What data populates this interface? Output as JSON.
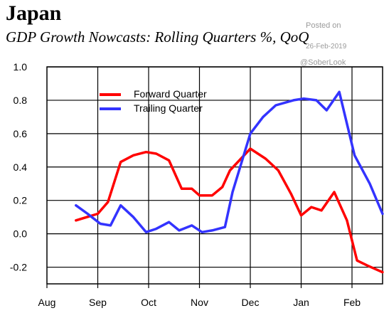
{
  "header": {
    "title": "Japan",
    "subtitle": "GDP Growth Nowcasts: Rolling Quarters %, QoQ"
  },
  "watermark": {
    "line1": "Posted on",
    "line2": "26-Feb-2019",
    "line3": "@SoberLook"
  },
  "chart_data": {
    "type": "line",
    "ylim": [
      -0.3,
      1.0
    ],
    "yticks": [
      1.0,
      0.8,
      0.6,
      0.4,
      0.2,
      0.0,
      -0.2
    ],
    "ytick_labels": [
      "1.0",
      "0.8",
      "0.6",
      "0.4",
      "0.2",
      "0.0",
      "-0.2"
    ],
    "xlim": [
      0,
      6.65
    ],
    "xticks": [
      0,
      1,
      2,
      3,
      4,
      5,
      6
    ],
    "xtick_labels": [
      "Aug",
      "Sep",
      "Oct",
      "Nov",
      "Dec",
      "Jan",
      "Feb"
    ],
    "grid": true,
    "legend_position": "top-left",
    "series": [
      {
        "name": "Forward Quarter",
        "color": "#ff0000",
        "points": [
          [
            0.57,
            0.08
          ],
          [
            1.0,
            0.12
          ],
          [
            1.2,
            0.19
          ],
          [
            1.45,
            0.43
          ],
          [
            1.7,
            0.47
          ],
          [
            1.95,
            0.49
          ],
          [
            2.15,
            0.48
          ],
          [
            2.4,
            0.44
          ],
          [
            2.65,
            0.27
          ],
          [
            2.85,
            0.27
          ],
          [
            3.0,
            0.23
          ],
          [
            3.25,
            0.23
          ],
          [
            3.45,
            0.28
          ],
          [
            3.6,
            0.38
          ],
          [
            4.0,
            0.51
          ],
          [
            4.3,
            0.45
          ],
          [
            4.55,
            0.38
          ],
          [
            4.8,
            0.24
          ],
          [
            5.0,
            0.11
          ],
          [
            5.2,
            0.16
          ],
          [
            5.4,
            0.14
          ],
          [
            5.65,
            0.25
          ],
          [
            5.9,
            0.08
          ],
          [
            6.1,
            -0.16
          ],
          [
            6.3,
            -0.19
          ],
          [
            6.6,
            -0.23
          ]
        ]
      },
      {
        "name": "Trailing Quarter",
        "color": "#3333ff",
        "points": [
          [
            0.57,
            0.17
          ],
          [
            0.8,
            0.12
          ],
          [
            1.05,
            0.06
          ],
          [
            1.25,
            0.05
          ],
          [
            1.45,
            0.17
          ],
          [
            1.7,
            0.1
          ],
          [
            1.95,
            0.01
          ],
          [
            2.15,
            0.03
          ],
          [
            2.4,
            0.07
          ],
          [
            2.6,
            0.02
          ],
          [
            2.85,
            0.05
          ],
          [
            3.05,
            0.01
          ],
          [
            3.25,
            0.02
          ],
          [
            3.5,
            0.04
          ],
          [
            3.65,
            0.25
          ],
          [
            3.85,
            0.45
          ],
          [
            4.0,
            0.6
          ],
          [
            4.25,
            0.7
          ],
          [
            4.5,
            0.77
          ],
          [
            4.85,
            0.8
          ],
          [
            5.05,
            0.81
          ],
          [
            5.3,
            0.8
          ],
          [
            5.5,
            0.74
          ],
          [
            5.75,
            0.85
          ],
          [
            6.05,
            0.47
          ],
          [
            6.35,
            0.3
          ],
          [
            6.6,
            0.12
          ]
        ]
      }
    ]
  }
}
